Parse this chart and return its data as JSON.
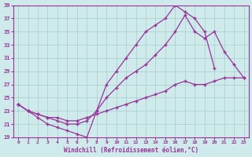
{
  "xlabel": "Windchill (Refroidissement éolien,°C)",
  "bg_color": "#ceeaea",
  "grid_color": "#aacccc",
  "line_color": "#993399",
  "xlim": [
    -0.5,
    23.5
  ],
  "ylim": [
    19,
    39
  ],
  "xticks": [
    0,
    1,
    2,
    3,
    4,
    5,
    6,
    7,
    8,
    9,
    10,
    11,
    12,
    13,
    14,
    15,
    16,
    17,
    18,
    19,
    20,
    21,
    22,
    23
  ],
  "yticks": [
    19,
    21,
    23,
    25,
    27,
    29,
    31,
    33,
    35,
    37,
    39
  ],
  "series": [
    {
      "x": [
        0,
        1,
        2,
        3,
        4,
        5,
        6,
        7,
        8,
        9,
        10,
        11,
        12,
        13,
        14,
        15,
        16,
        17,
        18,
        19,
        20
      ],
      "y": [
        24,
        23,
        22,
        21,
        20.5,
        20,
        19.5,
        19,
        23,
        27,
        29,
        31,
        33,
        35,
        36,
        37,
        39,
        38,
        37,
        35,
        29.5
      ]
    },
    {
      "x": [
        0,
        1,
        2,
        3,
        4,
        5,
        6,
        7,
        8,
        9,
        10,
        11,
        12,
        13,
        14,
        15,
        16,
        17,
        18,
        19,
        20,
        21,
        22,
        23
      ],
      "y": [
        24,
        23,
        22.5,
        22,
        21.5,
        21,
        21,
        21.5,
        23,
        25,
        26.5,
        28,
        29,
        30,
        31.5,
        33,
        35,
        37.5,
        35,
        34,
        35,
        32,
        30,
        28
      ]
    },
    {
      "x": [
        0,
        1,
        2,
        3,
        4,
        5,
        6,
        7,
        8,
        9,
        10,
        11,
        12,
        13,
        14,
        15,
        16,
        17,
        18,
        19,
        20,
        21,
        22,
        23
      ],
      "y": [
        24,
        23,
        22.5,
        22,
        22,
        21.5,
        21.5,
        22,
        22.5,
        23,
        23.5,
        24,
        24.5,
        25,
        25.5,
        26,
        27,
        27.5,
        27,
        27,
        27.5,
        28,
        28,
        28
      ]
    }
  ]
}
